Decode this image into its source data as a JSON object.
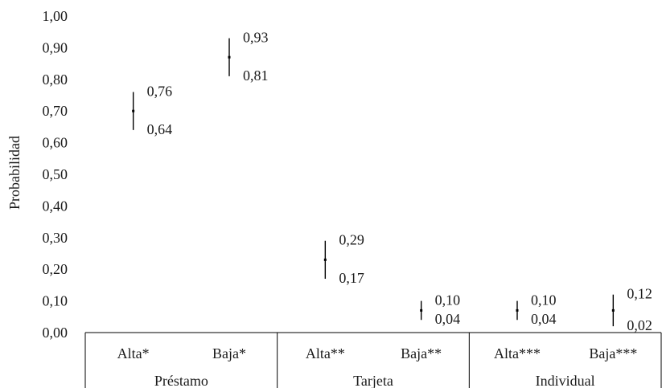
{
  "chart_data": {
    "type": "error-bar",
    "ylabel": "Probabilidad",
    "ylim": [
      0,
      1
    ],
    "y_ticks": [
      "0,00",
      "0,10",
      "0,20",
      "0,30",
      "0,40",
      "0,50",
      "0,60",
      "0,70",
      "0,80",
      "0,90",
      "1,00"
    ],
    "groups": [
      {
        "name": "Préstamo",
        "items": [
          {
            "category": "Alta*",
            "lower": 0.64,
            "upper": 0.76,
            "point": 0.7,
            "lower_label": "0,64",
            "upper_label": "0,76"
          },
          {
            "category": "Baja*",
            "lower": 0.81,
            "upper": 0.93,
            "point": 0.87,
            "lower_label": "0,81",
            "upper_label": "0,93"
          }
        ]
      },
      {
        "name": "Tarjeta",
        "items": [
          {
            "category": "Alta**",
            "lower": 0.17,
            "upper": 0.29,
            "point": 0.23,
            "lower_label": "0,17",
            "upper_label": "0,29"
          },
          {
            "category": "Baja**",
            "lower": 0.04,
            "upper": 0.1,
            "point": 0.07,
            "lower_label": "0,04",
            "upper_label": "0,10"
          }
        ]
      },
      {
        "name": "Individual",
        "items": [
          {
            "category": "Alta***",
            "lower": 0.04,
            "upper": 0.1,
            "point": 0.07,
            "lower_label": "0,04",
            "upper_label": "0,10"
          },
          {
            "category": "Baja***",
            "lower": 0.02,
            "upper": 0.12,
            "point": 0.07,
            "lower_label": "0,02",
            "upper_label": "0,12"
          }
        ]
      }
    ]
  }
}
